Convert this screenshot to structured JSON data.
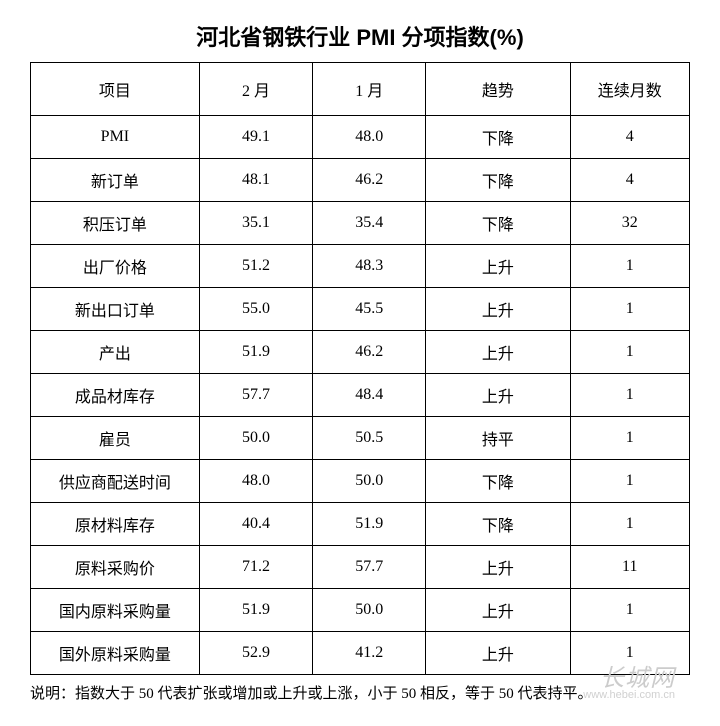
{
  "title": "河北省钢铁行业 PMI 分项指数(%)",
  "columns": [
    "项目",
    "2 月",
    "1 月",
    "趋势",
    "连续月数"
  ],
  "rows": [
    [
      "PMI",
      "49.1",
      "48.0",
      "下降",
      "4"
    ],
    [
      "新订单",
      "48.1",
      "46.2",
      "下降",
      "4"
    ],
    [
      "积压订单",
      "35.1",
      "35.4",
      "下降",
      "32"
    ],
    [
      "出厂价格",
      "51.2",
      "48.3",
      "上升",
      "1"
    ],
    [
      "新出口订单",
      "55.0",
      "45.5",
      "上升",
      "1"
    ],
    [
      "产出",
      "51.9",
      "46.2",
      "上升",
      "1"
    ],
    [
      "成品材库存",
      "57.7",
      "48.4",
      "上升",
      "1"
    ],
    [
      "雇员",
      "50.0",
      "50.5",
      "持平",
      "1"
    ],
    [
      "供应商配送时间",
      "48.0",
      "50.0",
      "下降",
      "1"
    ],
    [
      "原材料库存",
      "40.4",
      "51.9",
      "下降",
      "1"
    ],
    [
      "原料采购价",
      "71.2",
      "57.7",
      "上升",
      "11"
    ],
    [
      "国内原料采购量",
      "51.9",
      "50.0",
      "上升",
      "1"
    ],
    [
      "国外原料采购量",
      "52.9",
      "41.2",
      "上升",
      "1"
    ]
  ],
  "note": "说明：指数大于 50 代表扩张或增加或上升或上涨，小于 50 相反，等于 50 代表持平。",
  "watermark_main": "长城网",
  "watermark_sub": "www.hebei.com.cn"
}
